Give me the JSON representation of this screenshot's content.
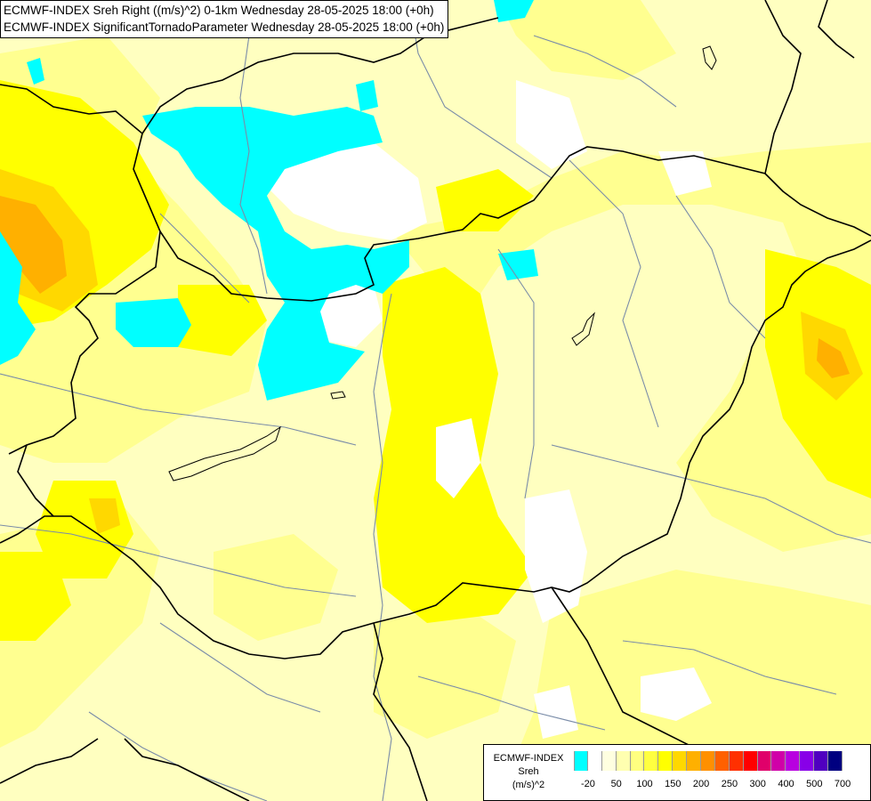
{
  "title": {
    "line1": "ECMWF-INDEX Sreh Right ((m/s)^2) 0-1km Wednesday 28-05-2025 18:00 (+0h)",
    "line2": "ECMWF-INDEX SignificantTornadoParameter Wednesday 28-05-2025 18:00 (+0h)"
  },
  "legend": {
    "line1": "ECMWF-INDEX",
    "line2": "Sreh",
    "line3": "(m/s)^2",
    "colors": [
      "#00ffff",
      "#ffffff",
      "#ffffe0",
      "#ffffb0",
      "#ffff80",
      "#ffff40",
      "#ffff00",
      "#ffd800",
      "#ffb000",
      "#ff9000",
      "#ff6000",
      "#ff3000",
      "#ff0000",
      "#e0006a",
      "#d000a8",
      "#b800e0",
      "#8800e8",
      "#5000c0",
      "#000080"
    ],
    "ticks": [
      "-20",
      "50",
      "100",
      "150",
      "200",
      "250",
      "300",
      "400",
      "500",
      "700"
    ]
  },
  "colors": {
    "negative": "#00ffff",
    "neutral": "#ffffff",
    "pale": "#ffffc0",
    "light": "#ffff90",
    "medium": "#ffff00",
    "high": "#ffd800",
    "higher": "#ffb000",
    "highest": "#ff9000",
    "border": "#000000",
    "river": "#7a8ca8"
  }
}
